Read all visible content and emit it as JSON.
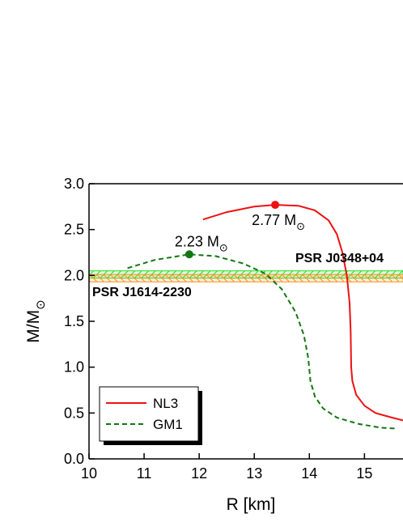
{
  "chart_data": {
    "type": "line",
    "xlabel": "R [km]",
    "ylabel": {
      "main": "M/M",
      "sub": "⊙"
    },
    "xlim": [
      10,
      15.7
    ],
    "ylim": [
      0,
      3
    ],
    "xticks": [
      10,
      11,
      12,
      13,
      14,
      15
    ],
    "yticks": [
      {
        "value": 0,
        "label": "0.0"
      },
      0.5,
      {
        "value": 1,
        "label": "1.0"
      },
      1.5,
      {
        "value": 2,
        "label": "2.0"
      },
      2.5,
      {
        "value": 3,
        "label": "3.0"
      }
    ],
    "legend": "lower left",
    "bands": [
      {
        "name": "PSR J0348+04",
        "color": "#22dd22",
        "low": 1.97,
        "high": 2.05
      },
      {
        "name": "PSR J1614-2230",
        "color": "#ff8c1a",
        "low": 1.93,
        "high": 2.01
      }
    ],
    "series": [
      {
        "name": "NL3",
        "color": "#ee1111",
        "dash": false,
        "x": [
          12.07,
          12.5,
          13.0,
          13.38,
          13.8,
          14.1,
          14.35,
          14.5,
          14.6,
          14.68,
          14.73,
          14.75,
          14.76,
          14.78,
          14.85,
          15.0,
          15.2,
          15.5,
          15.7
        ],
        "values": [
          2.61,
          2.69,
          2.75,
          2.77,
          2.76,
          2.71,
          2.6,
          2.45,
          2.25,
          2.0,
          1.7,
          1.4,
          1.0,
          0.85,
          0.7,
          0.58,
          0.5,
          0.45,
          0.42
        ],
        "max": {
          "x": 13.38,
          "y": 2.77,
          "label": "2.77 M",
          "sub": "⊙"
        }
      },
      {
        "name": "GM1",
        "color": "#117711",
        "dash": true,
        "x": [
          10.7,
          11.2,
          11.82,
          12.3,
          12.8,
          13.2,
          13.5,
          13.75,
          13.9,
          13.98,
          14.02,
          14.1,
          14.25,
          14.5,
          14.9,
          15.3,
          15.6
        ],
        "values": [
          2.08,
          2.17,
          2.23,
          2.21,
          2.13,
          2.02,
          1.85,
          1.6,
          1.35,
          1.1,
          0.85,
          0.68,
          0.55,
          0.45,
          0.38,
          0.34,
          0.33
        ],
        "max": {
          "x": 11.82,
          "y": 2.23,
          "label": "2.23 M",
          "sub": "⊙"
        }
      }
    ]
  }
}
